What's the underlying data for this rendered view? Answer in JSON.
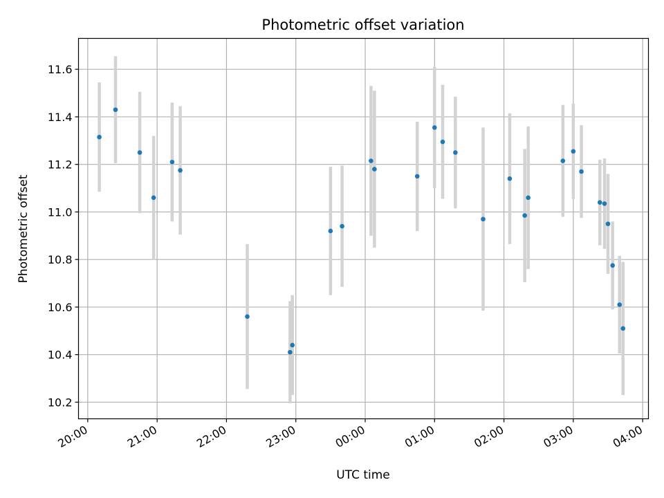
{
  "chart_data": {
    "type": "scatter",
    "title": "Photometric offset variation",
    "xlabel": "UTC time",
    "ylabel": "Photometric offset",
    "x_unit": "UTC time (HH:MM)",
    "x_ticks": [
      "20:00",
      "21:00",
      "22:00",
      "23:00",
      "00:00",
      "01:00",
      "02:00",
      "03:00",
      "04:00"
    ],
    "y_ticks": [
      "10.2",
      "10.4",
      "10.6",
      "10.8",
      "11.0",
      "11.2",
      "11.4",
      "11.6"
    ],
    "xlim": [
      "19:52",
      "04:05"
    ],
    "ylim": [
      10.13,
      11.73
    ],
    "grid": true,
    "marker_color": "#1f77b4",
    "errorbar_color": "#d3d3d3",
    "points": [
      {
        "x": "20:10",
        "y": 11.315,
        "err": 0.23
      },
      {
        "x": "20:24",
        "y": 11.43,
        "err": 0.225
      },
      {
        "x": "20:45",
        "y": 11.25,
        "err": 0.255
      },
      {
        "x": "20:57",
        "y": 11.06,
        "err": 0.26
      },
      {
        "x": "21:13",
        "y": 11.21,
        "err": 0.25
      },
      {
        "x": "21:20",
        "y": 11.175,
        "err": 0.27
      },
      {
        "x": "22:18",
        "y": 10.56,
        "err": 0.305
      },
      {
        "x": "22:55",
        "y": 10.41,
        "err": 0.215
      },
      {
        "x": "22:57",
        "y": 10.44,
        "err": 0.21
      },
      {
        "x": "23:30",
        "y": 10.92,
        "err": 0.27
      },
      {
        "x": "23:40",
        "y": 10.94,
        "err": 0.255
      },
      {
        "x": "00:05",
        "y": 11.215,
        "err": 0.315
      },
      {
        "x": "00:08",
        "y": 11.18,
        "err": 0.33
      },
      {
        "x": "00:45",
        "y": 11.15,
        "err": 0.23
      },
      {
        "x": "01:00",
        "y": 11.355,
        "err": 0.255
      },
      {
        "x": "01:07",
        "y": 11.295,
        "err": 0.24
      },
      {
        "x": "01:18",
        "y": 11.25,
        "err": 0.235
      },
      {
        "x": "01:42",
        "y": 10.97,
        "err": 0.385
      },
      {
        "x": "02:05",
        "y": 11.14,
        "err": 0.275
      },
      {
        "x": "02:18",
        "y": 10.985,
        "err": 0.28
      },
      {
        "x": "02:21",
        "y": 11.06,
        "err": 0.3
      },
      {
        "x": "02:51",
        "y": 11.215,
        "err": 0.235
      },
      {
        "x": "03:00",
        "y": 11.255,
        "err": 0.2
      },
      {
        "x": "03:07",
        "y": 11.17,
        "err": 0.195
      },
      {
        "x": "03:23",
        "y": 11.04,
        "err": 0.18
      },
      {
        "x": "03:27",
        "y": 11.035,
        "err": 0.19
      },
      {
        "x": "03:30",
        "y": 10.95,
        "err": 0.21
      },
      {
        "x": "03:34",
        "y": 10.775,
        "err": 0.185
      },
      {
        "x": "03:40",
        "y": 10.61,
        "err": 0.205
      },
      {
        "x": "03:43",
        "y": 10.51,
        "err": 0.28
      }
    ]
  }
}
